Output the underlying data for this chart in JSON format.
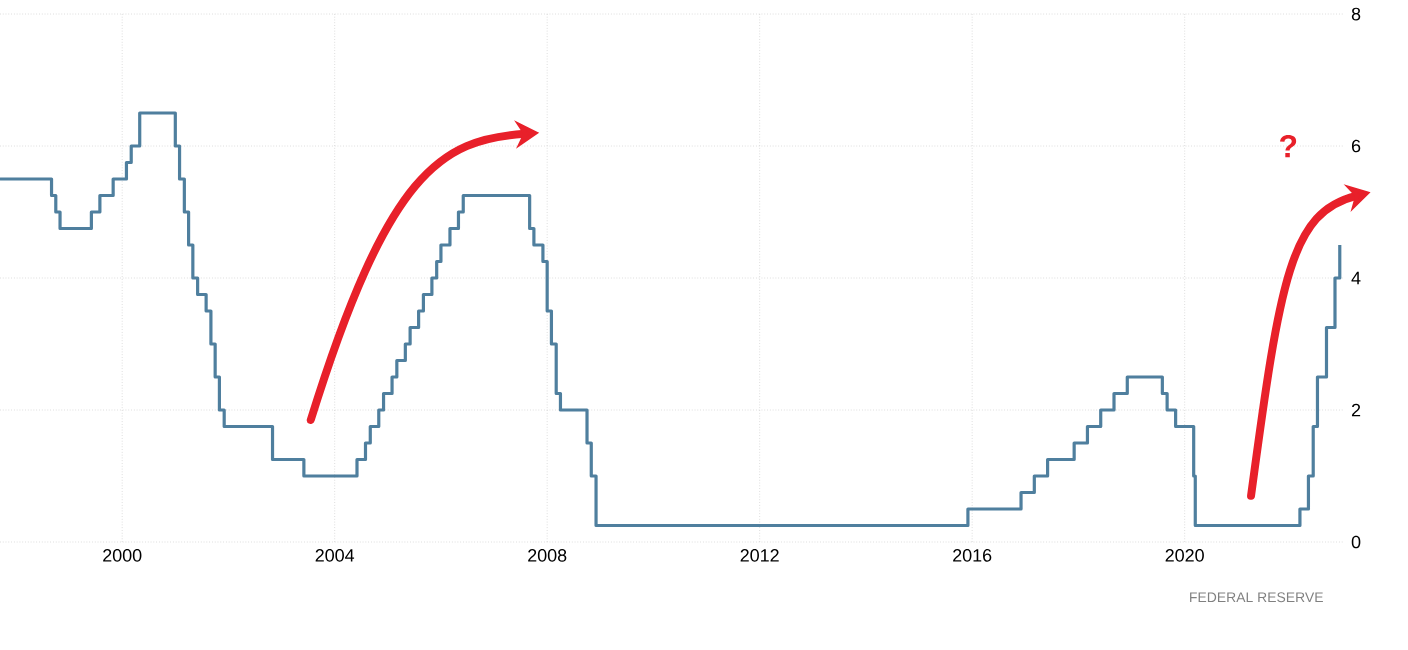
{
  "chart_data": {
    "type": "step",
    "color": "#4f7f9e",
    "x": [
      1997.7,
      1998.67,
      1998.75,
      1998.83,
      1999.42,
      1999.58,
      1999.83,
      2000.08,
      2000.17,
      2000.33,
      2001.0,
      2001.08,
      2001.17,
      2001.25,
      2001.33,
      2001.42,
      2001.58,
      2001.67,
      2001.75,
      2001.83,
      2001.92,
      2002.83,
      2003.42,
      2004.42,
      2004.58,
      2004.67,
      2004.83,
      2004.92,
      2005.08,
      2005.17,
      2005.33,
      2005.42,
      2005.58,
      2005.67,
      2005.83,
      2005.92,
      2006.0,
      2006.17,
      2006.33,
      2006.42,
      2007.67,
      2007.75,
      2007.92,
      2008.0,
      2008.08,
      2008.17,
      2008.25,
      2008.75,
      2008.83,
      2008.92,
      2015.92,
      2016.92,
      2017.17,
      2017.42,
      2017.92,
      2018.17,
      2018.42,
      2018.67,
      2018.92,
      2019.58,
      2019.67,
      2019.83,
      2020.17,
      2020.2,
      2022.17,
      2022.33,
      2022.42,
      2022.5,
      2022.67,
      2022.83,
      2022.92
    ],
    "values": [
      5.5,
      5.25,
      5.0,
      4.75,
      5.0,
      5.25,
      5.5,
      5.75,
      6.0,
      6.5,
      6.0,
      5.5,
      5.0,
      4.5,
      4.0,
      3.75,
      3.5,
      3.0,
      2.5,
      2.0,
      1.75,
      1.25,
      1.0,
      1.25,
      1.5,
      1.75,
      2.0,
      2.25,
      2.5,
      2.75,
      3.0,
      3.25,
      3.5,
      3.75,
      4.0,
      4.25,
      4.5,
      4.75,
      5.0,
      5.25,
      4.75,
      4.5,
      4.25,
      3.5,
      3.0,
      2.25,
      2.0,
      1.5,
      1.0,
      0.25,
      0.5,
      0.75,
      1.0,
      1.25,
      1.5,
      1.75,
      2.0,
      2.25,
      2.5,
      2.25,
      2.0,
      1.75,
      1.0,
      0.25,
      0.5,
      1.0,
      1.75,
      2.5,
      3.25,
      4.0,
      4.5
    ],
    "xlim": [
      1997.7,
      2023.0
    ],
    "xticks": [
      2000,
      2004,
      2008,
      2012,
      2016,
      2020
    ],
    "ylim": [
      0,
      8
    ],
    "yticks": [
      0,
      2,
      4,
      6,
      8
    ],
    "grid": true,
    "annotations": [
      "?",
      "FEDERAL RESERVE"
    ]
  }
}
